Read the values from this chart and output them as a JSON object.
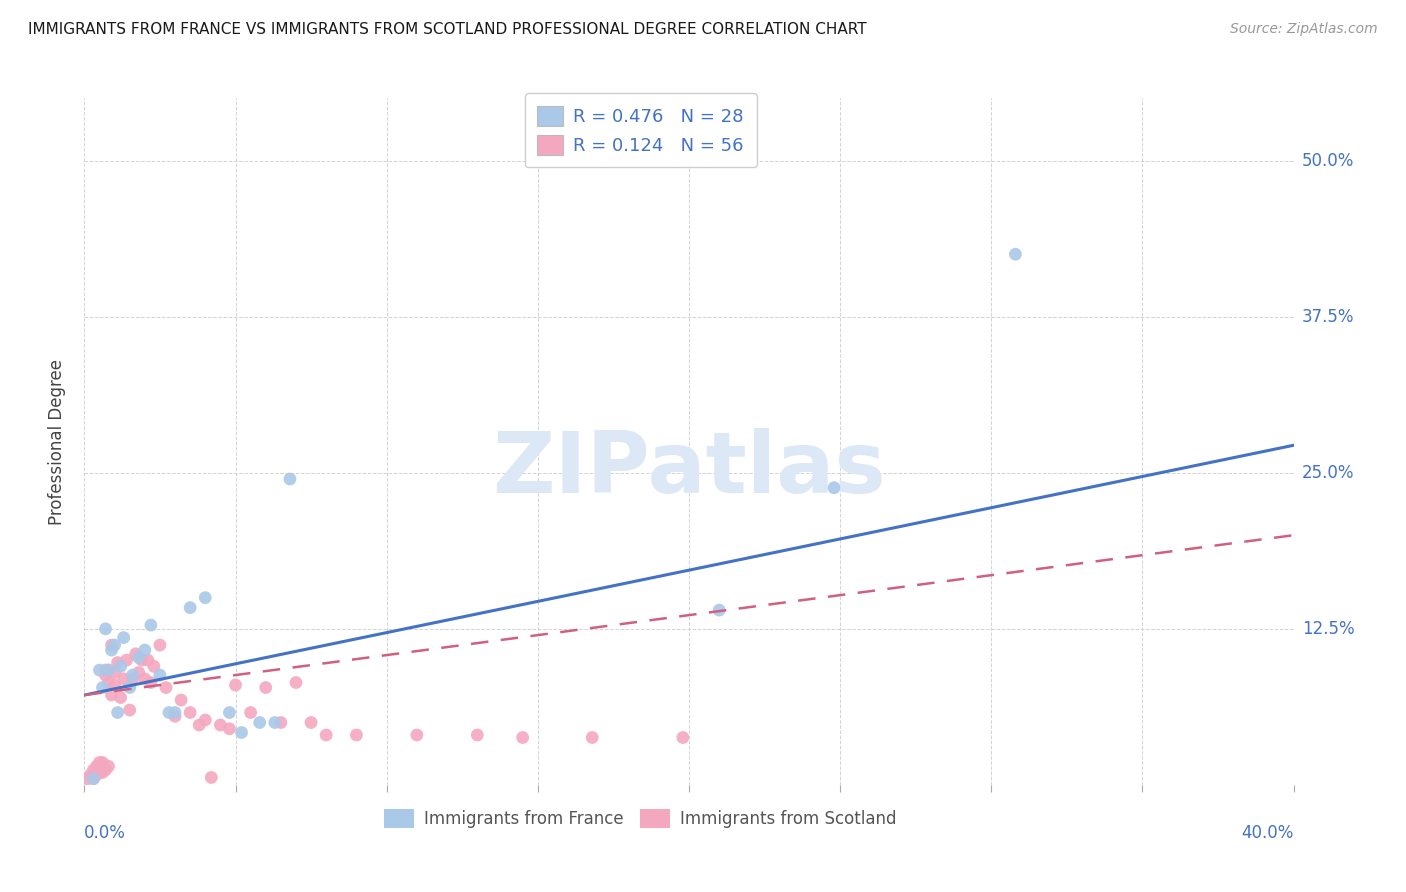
{
  "title": "IMMIGRANTS FROM FRANCE VS IMMIGRANTS FROM SCOTLAND PROFESSIONAL DEGREE CORRELATION CHART",
  "source": "Source: ZipAtlas.com",
  "ylabel": "Professional Degree",
  "xlim": [
    0.0,
    0.4
  ],
  "ylim": [
    0.0,
    0.55
  ],
  "france_R": 0.476,
  "france_N": 28,
  "scotland_R": 0.124,
  "scotland_N": 56,
  "france_color": "#aac8e8",
  "scotland_color": "#f4a8c0",
  "france_line_color": "#4472c4",
  "scotland_line_color": "#d06080",
  "background_color": "#ffffff",
  "grid_color": "#cccccc",
  "watermark_text": "ZIPatlas",
  "watermark_color": "#dce8f5",
  "yticks": [
    0.0,
    0.125,
    0.25,
    0.375,
    0.5
  ],
  "ytick_labels_right": [
    "",
    "12.5%",
    "25.0%",
    "37.5%",
    "50.0%"
  ],
  "france_x": [
    0.003,
    0.005,
    0.006,
    0.007,
    0.008,
    0.009,
    0.01,
    0.011,
    0.012,
    0.013,
    0.015,
    0.016,
    0.018,
    0.02,
    0.022,
    0.025,
    0.028,
    0.03,
    0.035,
    0.04,
    0.048,
    0.052,
    0.058,
    0.063,
    0.068,
    0.21,
    0.248,
    0.308
  ],
  "france_y": [
    0.005,
    0.092,
    0.078,
    0.125,
    0.092,
    0.108,
    0.112,
    0.058,
    0.095,
    0.118,
    0.078,
    0.088,
    0.102,
    0.108,
    0.128,
    0.088,
    0.058,
    0.058,
    0.142,
    0.15,
    0.058,
    0.042,
    0.05,
    0.05,
    0.245,
    0.14,
    0.238,
    0.425
  ],
  "scotland_x": [
    0.001,
    0.002,
    0.003,
    0.003,
    0.004,
    0.004,
    0.005,
    0.005,
    0.006,
    0.006,
    0.007,
    0.007,
    0.007,
    0.008,
    0.008,
    0.008,
    0.009,
    0.009,
    0.01,
    0.01,
    0.011,
    0.012,
    0.013,
    0.014,
    0.015,
    0.016,
    0.017,
    0.018,
    0.019,
    0.02,
    0.021,
    0.022,
    0.023,
    0.025,
    0.027,
    0.03,
    0.032,
    0.035,
    0.038,
    0.04,
    0.042,
    0.045,
    0.048,
    0.05,
    0.055,
    0.06,
    0.065,
    0.07,
    0.075,
    0.08,
    0.09,
    0.11,
    0.13,
    0.145,
    0.168,
    0.198
  ],
  "scotland_y": [
    0.005,
    0.008,
    0.012,
    0.005,
    0.008,
    0.015,
    0.01,
    0.018,
    0.01,
    0.018,
    0.012,
    0.088,
    0.092,
    0.015,
    0.082,
    0.092,
    0.072,
    0.112,
    0.08,
    0.09,
    0.098,
    0.07,
    0.085,
    0.1,
    0.06,
    0.085,
    0.105,
    0.09,
    0.1,
    0.085,
    0.1,
    0.082,
    0.095,
    0.112,
    0.078,
    0.055,
    0.068,
    0.058,
    0.048,
    0.052,
    0.006,
    0.048,
    0.045,
    0.08,
    0.058,
    0.078,
    0.05,
    0.082,
    0.05,
    0.04,
    0.04,
    0.04,
    0.04,
    0.038,
    0.038,
    0.038
  ],
  "france_line_x0": 0.0,
  "france_line_y0": 0.072,
  "france_line_x1": 0.4,
  "france_line_y1": 0.272,
  "scotland_line_x0": 0.0,
  "scotland_line_y0": 0.072,
  "scotland_line_x1": 0.4,
  "scotland_line_y1": 0.2,
  "legend1_label1": "R = 0.476   N = 28",
  "legend1_label2": "R = 0.124   N = 56",
  "legend2_label1": "Immigrants from France",
  "legend2_label2": "Immigrants from Scotland"
}
